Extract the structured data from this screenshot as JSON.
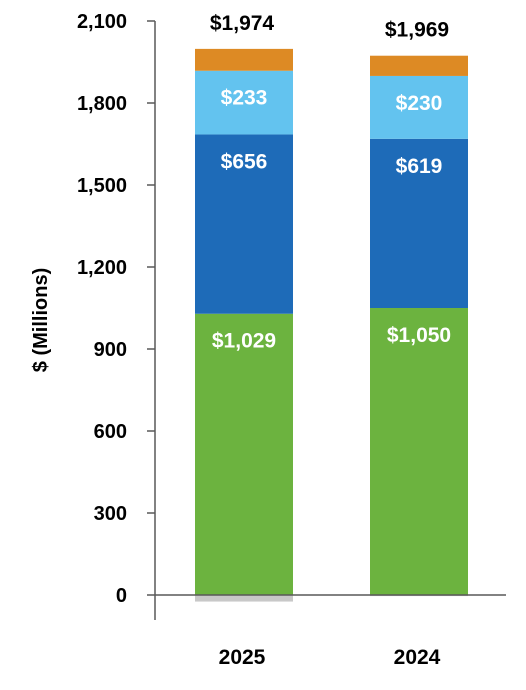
{
  "chart_data": {
    "type": "bar",
    "stacked": true,
    "title": "",
    "xlabel": "",
    "ylabel": "$ (Millions)",
    "ylim": [
      0,
      2100
    ],
    "yticks": [
      0,
      300,
      600,
      900,
      1200,
      1500,
      1800,
      2100
    ],
    "ytick_labels": [
      "0",
      "300",
      "600",
      "900",
      "1,200",
      "1,500",
      "1,800",
      "2,100"
    ],
    "categories": [
      "2025",
      "2024"
    ],
    "series": [
      {
        "key": "s0",
        "values": [
          -24,
          -4
        ],
        "color": "#c8c8c8",
        "labels": [
          "",
          ""
        ]
      },
      {
        "key": "s1",
        "values": [
          1029,
          1050
        ],
        "color": "#6cb33f",
        "labels": [
          "$1,029",
          "$1,050"
        ]
      },
      {
        "key": "s2",
        "values": [
          656,
          619
        ],
        "color": "#1e6bb8",
        "labels": [
          "$656",
          "$619"
        ]
      },
      {
        "key": "s3",
        "values": [
          233,
          230
        ],
        "color": "#63c3ef",
        "labels": [
          "$233",
          "$230"
        ]
      },
      {
        "key": "s4",
        "values": [
          80,
          74
        ],
        "color": "#dd8a24",
        "labels": [
          "",
          ""
        ]
      }
    ],
    "totals": [
      1974,
      1969
    ],
    "total_labels": [
      "$1,974",
      "$1,969"
    ],
    "grid": false,
    "legend": "none"
  }
}
